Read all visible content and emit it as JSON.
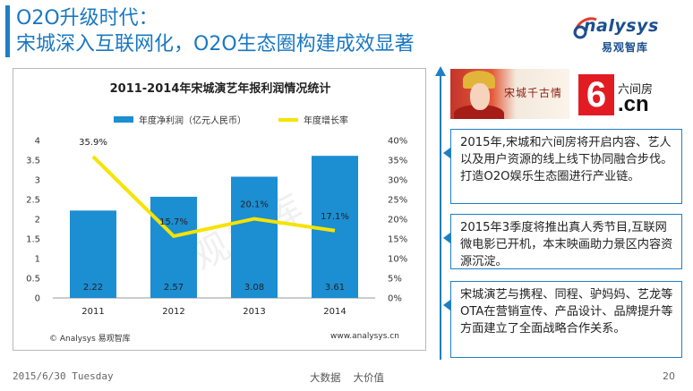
{
  "slide": {
    "title_line1": "O2O升级时代：",
    "title_line2": "宋城深入互联网化，O2O生态圈构建成效显著"
  },
  "logo": {
    "name": "nalysys",
    "sub": "易观智库"
  },
  "chart_data": {
    "type": "bar",
    "title": "2011-2014年宋城演艺年报利润情况统计",
    "categories": [
      "2011",
      "2012",
      "2013",
      "2014"
    ],
    "series": [
      {
        "name": "年度净利润（亿元人民币）",
        "kind": "bar",
        "axis": "left",
        "values": [
          2.22,
          2.57,
          3.08,
          3.61
        ],
        "labels": [
          "2.22",
          "2.57",
          "3.08",
          "3.61"
        ]
      },
      {
        "name": "年度增长率",
        "kind": "line",
        "axis": "right",
        "values": [
          35.9,
          15.7,
          20.1,
          17.1
        ],
        "labels": [
          "35.9%",
          "15.7%",
          "20.1%",
          "17.1%"
        ]
      }
    ],
    "ylim": [
      0,
      4
    ],
    "y_ticks": [
      "0",
      "0.5",
      "1",
      "1.5",
      "2",
      "2.5",
      "3",
      "3.5",
      "4"
    ],
    "y2lim": [
      0,
      40
    ],
    "y2_ticks": [
      "0%",
      "5%",
      "10%",
      "15%",
      "20%",
      "25%",
      "30%",
      "35%",
      "40%"
    ],
    "legend": "top",
    "grid": false,
    "colors": {
      "bar": "#1c8ed2",
      "line": "#f5e300"
    },
    "source_left": "© Analysys 易观智库",
    "source_right": "www.analysys.cn",
    "watermark": "易观智库"
  },
  "images": {
    "songcheng_caption": "宋城千古情",
    "sixroom_top": "六间房",
    "sixroom_bottom": ".cn",
    "sixroom_number": "6"
  },
  "boxes": [
    {
      "text": "2015年,宋城和六间房将开启内容、艺人以及用户资源的线上线下协同融合步伐。打造O2O娱乐生态圈进行产业链。"
    },
    {
      "text": "2015年3季度将推出真人秀节目,互联网微电影已开机，本末映画助力景区内容资源沉淀。"
    },
    {
      "text": "宋城演艺与携程、同程、驴妈妈、艺龙等OTA在营销宣传、产品设计、品牌提升等方面建立了全面战略合作关系。"
    }
  ],
  "footer": {
    "date": "2015/6/30 Tuesday",
    "mid_1": "大数据",
    "mid_2": "大价值",
    "page": "20"
  },
  "colors": {
    "accent": "#1f7fc4",
    "title": "#1a78c2"
  }
}
